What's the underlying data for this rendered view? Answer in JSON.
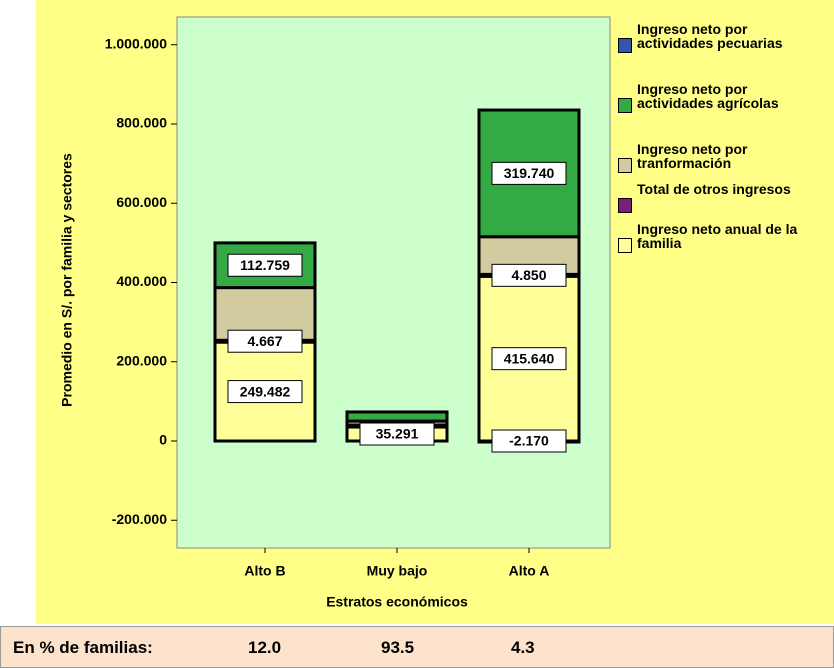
{
  "chart_data": {
    "type": "stacked_bar",
    "y_label": "Promedio en S/. por familia y sectores",
    "x_label": "Estratos económicos",
    "categories": [
      "Alto B",
      "Muy bajo",
      "Alto A"
    ],
    "series": [
      {
        "name": "Ingreso neto anual de la familia",
        "color": "#ffff99",
        "values": [
          249482,
          35291,
          415640
        ],
        "value_labels": [
          "249.482",
          "35.291",
          "415.640"
        ]
      },
      {
        "name": "Total de otros ingresos",
        "color": "#7b1f7b",
        "values": [
          4667,
          5000,
          4850
        ],
        "value_labels": [
          "4.667",
          null,
          "4.850"
        ]
      },
      {
        "name": "Ingreso neto por tranformación",
        "color": "#d2cba0",
        "values": [
          133000,
          10000,
          95000
        ]
      },
      {
        "name": "Ingreso neto por actividades agrícolas",
        "color": "#33aa44",
        "values": [
          112759,
          23000,
          319740
        ],
        "value_labels": [
          "112.759",
          null,
          "319.740"
        ]
      },
      {
        "name": "Ingreso neto por actividades pecuarias",
        "color": "#3355aa",
        "values": [
          null,
          null,
          -2170
        ],
        "value_labels": [
          null,
          null,
          "-2.170"
        ]
      }
    ],
    "legend_order": [
      4,
      3,
      2,
      1,
      0
    ],
    "ylim": [
      -270000,
      1070000
    ],
    "yticks": [
      {
        "value": -200000,
        "label": "-200.000"
      },
      0,
      {
        "value": 200000,
        "label": "200.000"
      },
      {
        "value": 400000,
        "label": "400.000"
      },
      {
        "value": 600000,
        "label": "600.000"
      },
      {
        "value": 800000,
        "label": "800.000"
      },
      {
        "value": 1000000,
        "label": "1.000.000"
      }
    ],
    "legend": "right"
  },
  "footer": {
    "label": "En % de familias:",
    "values": [
      "12.0",
      "93.5",
      "4.3"
    ]
  }
}
